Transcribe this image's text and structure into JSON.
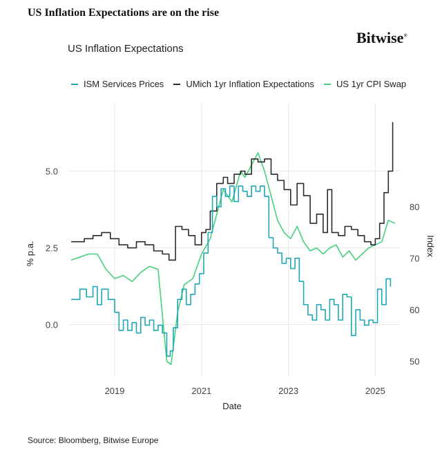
{
  "headline": "US Inflation Expectations are on the rise",
  "brand": {
    "name": "Bitwise",
    "mark": "®"
  },
  "source": "Source: Bloomberg, Bitwise Europe",
  "colors": {
    "ism": "#1fa7b5",
    "umich": "#2b2b2b",
    "swap": "#45d07e",
    "grid": "#e7e7e7",
    "tick": "#444444"
  },
  "chart_data": {
    "type": "line",
    "title": "US Inflation Expectations",
    "xlabel": "Date",
    "ylabel": "% p.a.",
    "ylabel_right": "Index",
    "xlim": [
      2017.95,
      2025.55
    ],
    "ylim": [
      -1.7,
      7.2
    ],
    "ylim_right": [
      47,
      100
    ],
    "x_ticks": [
      2019,
      2021,
      2023,
      2025
    ],
    "x_tick_labels": [
      "2019",
      "2021",
      "2023",
      "2025"
    ],
    "y_ticks": [
      0,
      2.5,
      5
    ],
    "y_tick_labels": [
      "0.0",
      "2.5",
      "5.0"
    ],
    "y_ticks_right": [
      50,
      60,
      70,
      80
    ],
    "y_tick_labels_right": [
      "50",
      "60",
      "70",
      "80"
    ],
    "grid": true,
    "legend_position": "top-left",
    "series": [
      {
        "name": "ISM Services Prices",
        "axis": "right",
        "color_key": "ism",
        "step": true,
        "x": [
          2018.0,
          2018.2,
          2018.35,
          2018.5,
          2018.6,
          2018.7,
          2018.85,
          2019.0,
          2019.1,
          2019.2,
          2019.3,
          2019.4,
          2019.5,
          2019.6,
          2019.7,
          2019.8,
          2019.9,
          2020.0,
          2020.1,
          2020.2,
          2020.28,
          2020.35,
          2020.45,
          2020.55,
          2020.65,
          2020.75,
          2020.85,
          2020.95,
          2021.05,
          2021.15,
          2021.25,
          2021.35,
          2021.45,
          2021.55,
          2021.65,
          2021.75,
          2021.85,
          2021.95,
          2022.05,
          2022.15,
          2022.25,
          2022.35,
          2022.45,
          2022.55,
          2022.65,
          2022.75,
          2022.85,
          2022.95,
          2023.05,
          2023.15,
          2023.25,
          2023.35,
          2023.45,
          2023.55,
          2023.65,
          2023.75,
          2023.85,
          2023.95,
          2024.05,
          2024.15,
          2024.25,
          2024.35,
          2024.45,
          2024.55,
          2024.65,
          2024.75,
          2024.85,
          2024.95,
          2025.05,
          2025.15,
          2025.25,
          2025.35
        ],
        "values": [
          62,
          64,
          62.5,
          64.5,
          61,
          64,
          62,
          59.5,
          56,
          58,
          56,
          57.5,
          55.5,
          58.5,
          57,
          58,
          56,
          57,
          55.5,
          51,
          52,
          56.5,
          62,
          64,
          61,
          63,
          65,
          67,
          71,
          75,
          82,
          80,
          83.5,
          82,
          84,
          81,
          84,
          83,
          82,
          84,
          83,
          84,
          82,
          74,
          72,
          71,
          69,
          70,
          68,
          70,
          65.5,
          61,
          59,
          58,
          61,
          60,
          58,
          62,
          61,
          58,
          63,
          62.5,
          55,
          60,
          58,
          57,
          58,
          57.5,
          64,
          61,
          66,
          64.5
        ]
      },
      {
        "name": "UMich 1yr Inflation Expectations",
        "axis": "left",
        "color_key": "umich",
        "step": true,
        "x": [
          2018.0,
          2018.3,
          2018.5,
          2018.7,
          2018.9,
          2019.1,
          2019.3,
          2019.5,
          2019.7,
          2019.9,
          2020.1,
          2020.25,
          2020.4,
          2020.55,
          2020.7,
          2020.85,
          2021.0,
          2021.1,
          2021.2,
          2021.35,
          2021.5,
          2021.6,
          2021.75,
          2021.9,
          2022.0,
          2022.15,
          2022.3,
          2022.45,
          2022.6,
          2022.75,
          2022.9,
          2023.05,
          2023.2,
          2023.35,
          2023.5,
          2023.65,
          2023.8,
          2023.9,
          2024.0,
          2024.15,
          2024.3,
          2024.45,
          2024.6,
          2024.75,
          2024.9,
          2025.0,
          2025.1,
          2025.2,
          2025.3,
          2025.4
        ],
        "values": [
          2.7,
          2.8,
          2.9,
          3.0,
          2.8,
          2.6,
          2.5,
          2.7,
          2.6,
          2.4,
          2.3,
          2.1,
          3.2,
          3.1,
          2.9,
          2.6,
          3.0,
          3.1,
          3.7,
          4.6,
          4.8,
          4.6,
          4.9,
          5.0,
          4.9,
          5.4,
          5.3,
          5.4,
          4.9,
          4.7,
          4.4,
          3.9,
          4.6,
          4.2,
          3.3,
          3.6,
          3.0,
          4.4,
          3.0,
          2.9,
          3.2,
          3.1,
          2.9,
          2.7,
          2.6,
          2.8,
          3.3,
          4.3,
          5.0,
          6.6
        ]
      },
      {
        "name": "US 1yr CPI Swap",
        "axis": "left",
        "color_key": "swap",
        "step": false,
        "x": [
          2018.0,
          2018.2,
          2018.4,
          2018.6,
          2018.8,
          2019.0,
          2019.2,
          2019.4,
          2019.6,
          2019.8,
          2020.0,
          2020.2,
          2020.3,
          2020.45,
          2020.6,
          2020.8,
          2021.0,
          2021.2,
          2021.35,
          2021.5,
          2021.7,
          2021.9,
          2022.0,
          2022.15,
          2022.3,
          2022.45,
          2022.6,
          2022.75,
          2022.9,
          2023.05,
          2023.2,
          2023.35,
          2023.5,
          2023.65,
          2023.8,
          2023.95,
          2024.1,
          2024.25,
          2024.4,
          2024.55,
          2024.7,
          2024.85,
          2025.0,
          2025.15,
          2025.3,
          2025.45
        ],
        "values": [
          2.1,
          2.2,
          2.3,
          2.3,
          1.8,
          1.5,
          1.6,
          1.4,
          1.7,
          1.9,
          1.8,
          -1.2,
          -1.3,
          0.4,
          1.3,
          1.5,
          2.3,
          2.8,
          3.6,
          4.4,
          4.0,
          5.0,
          4.8,
          5.2,
          5.6,
          5.0,
          4.2,
          3.4,
          3.0,
          2.8,
          3.2,
          2.7,
          2.4,
          2.5,
          2.3,
          2.5,
          2.6,
          2.2,
          2.4,
          2.1,
          2.3,
          2.5,
          2.6,
          2.7,
          3.4,
          3.3
        ]
      }
    ]
  }
}
